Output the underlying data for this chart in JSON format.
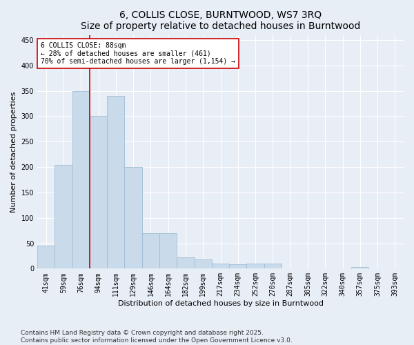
{
  "title_line1": "6, COLLIS CLOSE, BURNTWOOD, WS7 3RQ",
  "title_line2": "Size of property relative to detached houses in Burntwood",
  "xlabel": "Distribution of detached houses by size in Burntwood",
  "ylabel": "Number of detached properties",
  "categories": [
    "41sqm",
    "59sqm",
    "76sqm",
    "94sqm",
    "111sqm",
    "129sqm",
    "146sqm",
    "164sqm",
    "182sqm",
    "199sqm",
    "217sqm",
    "234sqm",
    "252sqm",
    "270sqm",
    "287sqm",
    "305sqm",
    "322sqm",
    "340sqm",
    "357sqm",
    "375sqm",
    "393sqm"
  ],
  "values": [
    45,
    204,
    350,
    300,
    340,
    200,
    70,
    70,
    22,
    18,
    10,
    8,
    10,
    10,
    0,
    0,
    0,
    0,
    3,
    0,
    0
  ],
  "bar_color": "#c9daea",
  "bar_edge_color": "#a0bdd4",
  "vline_color": "#cc0000",
  "annotation_text": "6 COLLIS CLOSE: 88sqm\n← 28% of detached houses are smaller (461)\n70% of semi-detached houses are larger (1,154) →",
  "annotation_box_color": "#ffffff",
  "annotation_box_edge": "#cc0000",
  "ylim": [
    0,
    460
  ],
  "yticks": [
    0,
    50,
    100,
    150,
    200,
    250,
    300,
    350,
    400,
    450
  ],
  "bg_color": "#e8eef6",
  "plot_bg_color": "#e8eef6",
  "footer_text": "Contains HM Land Registry data © Crown copyright and database right 2025.\nContains public sector information licensed under the Open Government Licence v3.0.",
  "title_fontsize": 10,
  "axis_label_fontsize": 8,
  "tick_fontsize": 7,
  "annotation_fontsize": 7,
  "footer_fontsize": 6.5
}
